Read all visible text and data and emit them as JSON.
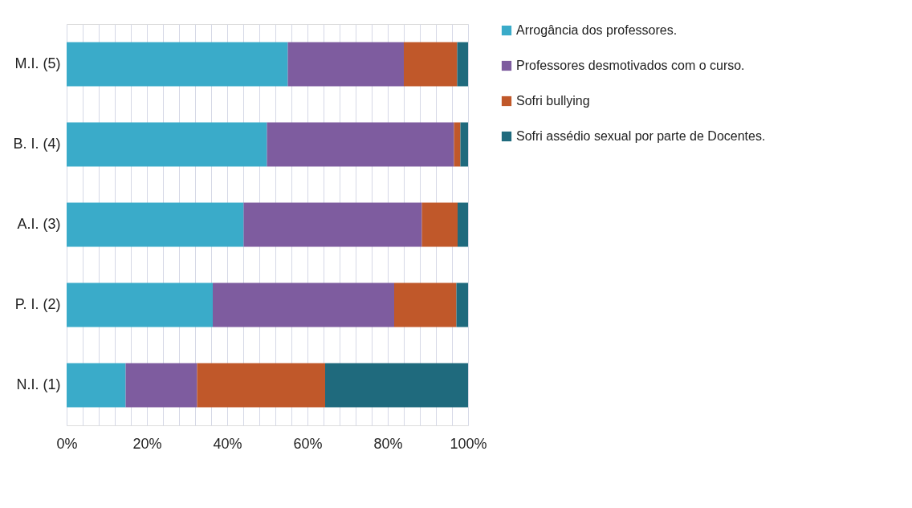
{
  "chart_data": {
    "type": "bar",
    "orientation": "horizontal",
    "stacked": true,
    "categories": [
      "M.I. (5)",
      "B. I. (4)",
      "A.I. (3)",
      "P. I. (2)",
      "N.I. (1)"
    ],
    "series": [
      {
        "name": "Arrogância dos professores.",
        "color": "#3aabc9",
        "values": [
          55.1,
          49.9,
          44.1,
          36.4,
          14.7
        ]
      },
      {
        "name": "Professores desmotivados com o curso.",
        "color": "#7e5c9f",
        "values": [
          28.9,
          46.6,
          44.4,
          45.2,
          17.8
        ]
      },
      {
        "name": "Sofri bullying",
        "color": "#c0582a",
        "values": [
          13.3,
          1.6,
          8.9,
          15.5,
          31.9
        ]
      },
      {
        "name": " Sofri assédio sexual por parte de Docentes.",
        "color": "#1f6a7d",
        "values": [
          2.7,
          1.9,
          2.6,
          2.9,
          35.6
        ]
      }
    ],
    "xlim": [
      0,
      100
    ],
    "xticks": [
      {
        "value": 0,
        "label": "0%"
      },
      {
        "value": 4,
        "label": null
      },
      {
        "value": 8,
        "label": null
      },
      {
        "value": 12,
        "label": null
      },
      {
        "value": 16,
        "label": null
      },
      {
        "value": 20,
        "label": "20%"
      },
      {
        "value": 24,
        "label": null
      },
      {
        "value": 28,
        "label": null
      },
      {
        "value": 32,
        "label": null
      },
      {
        "value": 36,
        "label": null
      },
      {
        "value": 40,
        "label": "40%"
      },
      {
        "value": 44,
        "label": null
      },
      {
        "value": 48,
        "label": null
      },
      {
        "value": 52,
        "label": null
      },
      {
        "value": 56,
        "label": null
      },
      {
        "value": 60,
        "label": "60%"
      },
      {
        "value": 64,
        "label": null
      },
      {
        "value": 68,
        "label": null
      },
      {
        "value": 72,
        "label": null
      },
      {
        "value": 76,
        "label": null
      },
      {
        "value": 80,
        "label": "80%"
      },
      {
        "value": 84,
        "label": null
      },
      {
        "value": 88,
        "label": null
      },
      {
        "value": 92,
        "label": null
      },
      {
        "value": 96,
        "label": null
      },
      {
        "value": 100,
        "label": "100%"
      }
    ],
    "grid": "x",
    "legend": "right"
  }
}
